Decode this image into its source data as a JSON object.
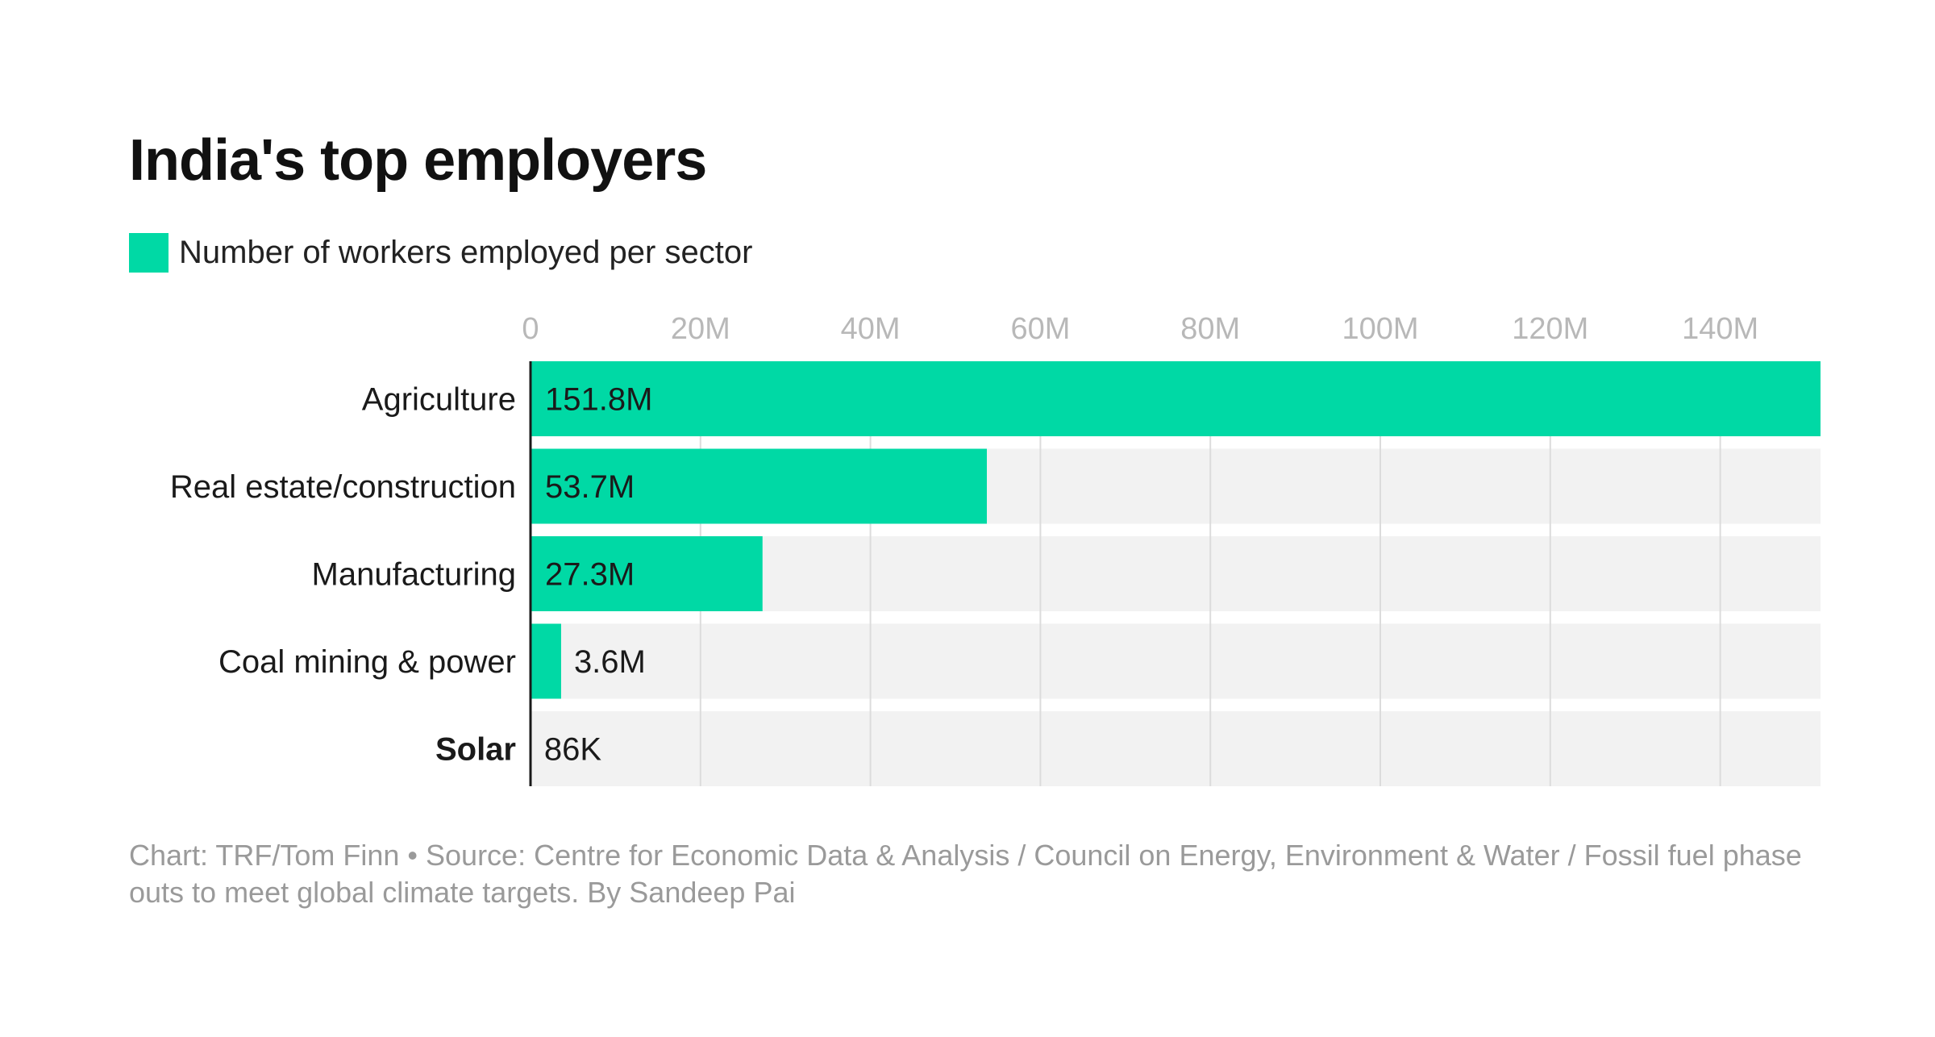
{
  "chart_data": {
    "type": "bar",
    "orientation": "horizontal",
    "title": "India's top employers",
    "legend": [
      {
        "label": "Number of workers employed per sector",
        "color": "#00d9a5"
      }
    ],
    "categories": [
      "Agriculture",
      "Real estate/construction",
      "Manufacturing",
      "Coal mining & power",
      "Solar"
    ],
    "values": [
      151.8,
      53.7,
      27.3,
      3.6,
      0.086
    ],
    "value_labels": [
      "151.8M",
      "53.7M",
      "27.3M",
      "3.6M",
      "86K"
    ],
    "units": "millions of workers",
    "highlight_category": "Solar",
    "xlim": [
      0,
      151.8
    ],
    "xticks": [
      0,
      20,
      40,
      60,
      80,
      100,
      120,
      140
    ],
    "xtick_labels": [
      "0",
      "20M",
      "40M",
      "60M",
      "80M",
      "100M",
      "120M",
      "140M"
    ],
    "xaxis_position": "top",
    "grid": true,
    "colors": {
      "bar": "#00d9a5",
      "track": "#f2f2f2",
      "grid": "#dcdcdc",
      "axis": "#1a1a1a",
      "tick_label": "#b8b8b8"
    }
  },
  "footer": {
    "credit": "Chart: TRF/Tom Finn • Source: Centre for Economic Data & Analysis / Council on Energy, Environment & Water / Fossil fuel phase outs to meet global climate targets. By Sandeep Pai"
  }
}
